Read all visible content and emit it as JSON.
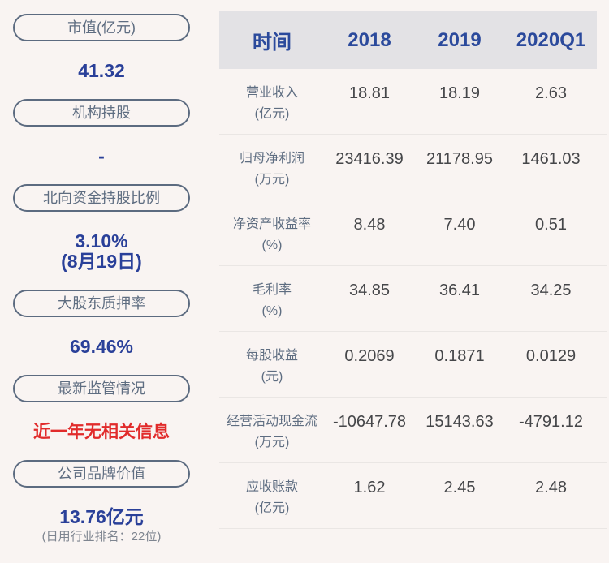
{
  "colors": {
    "page_background": "#f9f4f2",
    "table_header_background": "#e3e2e5",
    "accent_blue": "#2a4099",
    "header_blue": "#2b4a9c",
    "alert_red": "#e12b2b",
    "slate_label": "#5e6d81",
    "number_text": "#454649"
  },
  "sidebar": {
    "items": [
      {
        "label": "市值(亿元)",
        "value": "41.32"
      },
      {
        "label": "机构持股",
        "value": "-"
      },
      {
        "label": "北向资金持股比例",
        "value": "3.10%",
        "value_line2": "(8月19日)"
      },
      {
        "label": "大股东质押率",
        "value": "69.46%"
      },
      {
        "label": "最新监管情况",
        "value": "近一年无相关信息",
        "status": "red"
      },
      {
        "label": "公司品牌价值",
        "value": "13.76亿元",
        "note": "(日用行业排名：22位)"
      }
    ]
  },
  "table": {
    "header": {
      "time_label": "时间",
      "years": [
        "2018",
        "2019",
        "2020Q1"
      ]
    },
    "rows": [
      {
        "label": "营业收入",
        "unit": "(亿元)",
        "values": [
          "18.81",
          "18.19",
          "2.63"
        ]
      },
      {
        "label": "归母净利润",
        "unit": "(万元)",
        "values": [
          "23416.39",
          "21178.95",
          "1461.03"
        ]
      },
      {
        "label": "净资产收益率",
        "unit": "(%)",
        "values": [
          "8.48",
          "7.40",
          "0.51"
        ]
      },
      {
        "label": "毛利率",
        "unit": "(%)",
        "values": [
          "34.85",
          "36.41",
          "34.25"
        ]
      },
      {
        "label": "每股收益",
        "unit": "(元)",
        "values": [
          "0.2069",
          "0.1871",
          "0.0129"
        ]
      },
      {
        "label": "经营活动现金流",
        "unit": "(万元)",
        "values": [
          "-10647.78",
          "15143.63",
          "-4791.12"
        ]
      },
      {
        "label": "应收账款",
        "unit": "(亿元)",
        "values": [
          "1.62",
          "2.45",
          "2.48"
        ]
      }
    ]
  }
}
